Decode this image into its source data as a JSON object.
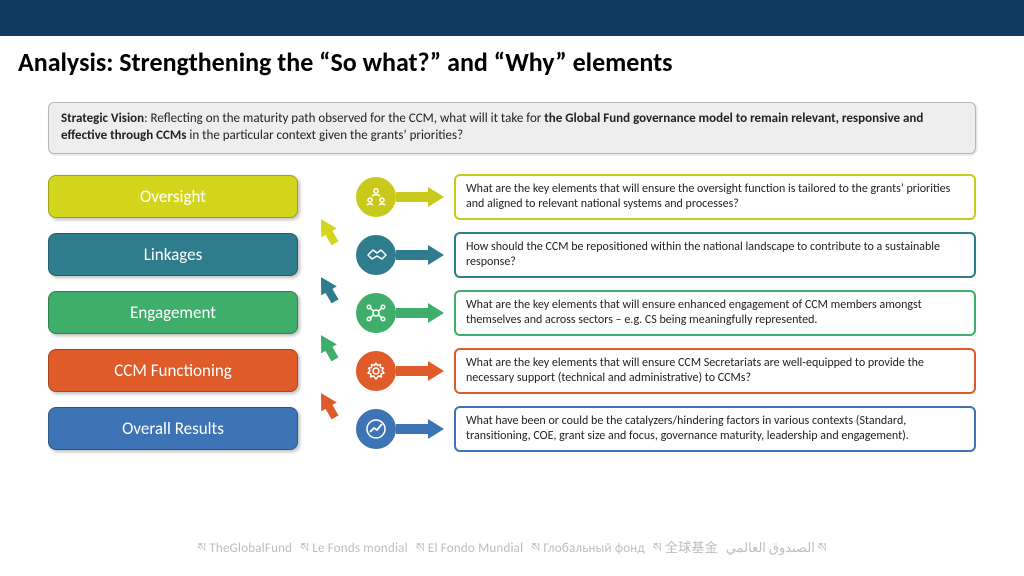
{
  "colors": {
    "topband": "#0f3a61",
    "vision_bg": "#eeeeee",
    "vision_border": "#b7b7b7",
    "footer": "#bdbdbd"
  },
  "title": "Analysis: Strengthening the “So what?” and “Why” elements",
  "vision": {
    "lead": "Strategic Vision",
    "text_before": ": Reflecting on the maturity path observed for the CCM, what will it take for ",
    "bold": "the Global Fund governance model to remain relevant, responsive and effective through CCMs",
    "text_after": " in the particular context given the grants’ priorities?"
  },
  "rows": [
    {
      "label": "Oversight",
      "color": "#c9c91c",
      "fill": "#d4d61e",
      "icon": "people",
      "desc": "What are the key elements that will ensure the oversight function is tailored to the grants’ priorities and aligned to relevant national systems and processes?",
      "show_up_arrow": false
    },
    {
      "label": "Linkages",
      "color": "#2e7c8c",
      "fill": "#2e7c8c",
      "icon": "handshake",
      "desc": "How should the CCM be repositioned within the national landscape to contribute to a sustainable response?",
      "show_up_arrow": true,
      "up_color": "#d4d61e"
    },
    {
      "label": "Engagement",
      "color": "#3fae6a",
      "fill": "#3fae6a",
      "icon": "network",
      "desc": "What are the key elements that will ensure enhanced engagement of CCM members amongst themselves and across sectors – e.g. CS being meaningfully represented.",
      "show_up_arrow": true,
      "up_color": "#2e7c8c"
    },
    {
      "label": "CCM Functioning",
      "color": "#e05b2a",
      "fill": "#e05b2a",
      "icon": "gear",
      "desc": "What are the key elements that will ensure CCM Secretariats are well-equipped to provide the necessary support (technical and administrative) to CCMs?",
      "show_up_arrow": true,
      "up_color": "#3fae6a"
    },
    {
      "label": "Overall Results",
      "color": "#3d74b5",
      "fill": "#3d74b5",
      "icon": "chart",
      "desc": "What have been or could be the catalyzers/hindering factors in various contexts (Standard, transitioning, COE, grant size and focus, governance maturity, leadership and engagement).",
      "show_up_arrow": true,
      "up_color": "#e05b2a"
    }
  ],
  "footer": [
    "ས TheGlobalFund",
    "ས Le Fonds mondial",
    "ས El Fondo Mundial",
    "ས Глобальный фонд",
    "ས 全球基金",
    "الصندوق العالمي ས"
  ],
  "icons_svg": {
    "people": "<circle cx='11' cy='5' r='2.2' fill='none' stroke='COLOR' stroke-width='1.5'/><path d='M7 10 Q11 7 15 10' fill='none' stroke='COLOR' stroke-width='1.5'/><circle cx='5' cy='14' r='2' fill='none' stroke='COLOR' stroke-width='1.5'/><circle cx='17' cy='14' r='2' fill='none' stroke='COLOR' stroke-width='1.5'/><path d='M2 19 Q5 16.5 8 19 M14 19 Q17 16.5 20 19' fill='none' stroke='COLOR' stroke-width='1.5'/>",
    "handshake": "<path d='M3 11 L8 6 L12 9 L16 6 L21 11 L17 15 L12 12 L7 15 Z' fill='none' stroke='COLOR' stroke-width='1.5' stroke-linejoin='round'/>",
    "network": "<circle cx='11' cy='11' r='3' fill='none' stroke='COLOR' stroke-width='1.5'/><circle cx='4' cy='5' r='1.8' fill='none' stroke='COLOR' stroke-width='1.5'/><circle cx='18' cy='5' r='1.8' fill='none' stroke='COLOR' stroke-width='1.5'/><circle cx='4' cy='17' r='1.8' fill='none' stroke='COLOR' stroke-width='1.5'/><circle cx='18' cy='17' r='1.8' fill='none' stroke='COLOR' stroke-width='1.5'/><line x1='8.5' y1='9' x2='5.5' y2='6.5' stroke='COLOR' stroke-width='1.5'/><line x1='13.5' y1='9' x2='16.5' y2='6.5' stroke='COLOR' stroke-width='1.5'/><line x1='8.5' y1='13' x2='5.5' y2='15.5' stroke='COLOR' stroke-width='1.5'/><line x1='13.5' y1='13' x2='16.5' y2='15.5' stroke='COLOR' stroke-width='1.5'/>",
    "gear": "<circle cx='11' cy='11' r='3' fill='none' stroke='COLOR' stroke-width='1.5'/><path d='M11 3 L12.5 5.5 L15.5 4.5 L15.5 7.5 L18.5 8 L17 10.5 L19 13 L16 14 L16.5 17 L13.5 16 L11 19 L8.5 16 L5.5 17 L6 14 L3 13 L5 10.5 L3.5 8 L6.5 7.5 L6.5 4.5 L9.5 5.5 Z' fill='none' stroke='COLOR' stroke-width='1.5' stroke-linejoin='round'/>",
    "chart": "<circle cx='11' cy='11' r='9' fill='none' stroke='COLOR' stroke-width='1.5'/><polyline points='5,14 9,10 12,12 17,6' fill='none' stroke='COLOR' stroke-width='1.8'/>"
  }
}
